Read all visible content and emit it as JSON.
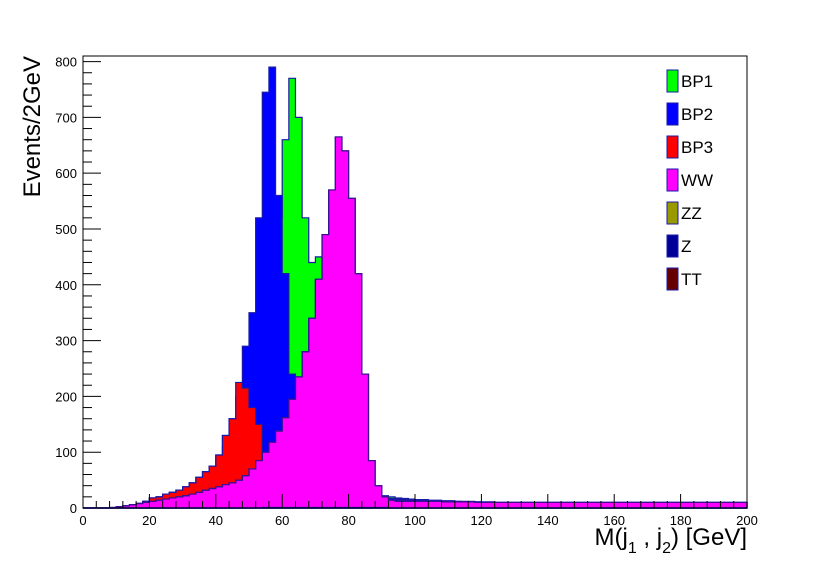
{
  "chart_data": {
    "type": "area",
    "title": "",
    "xlabel": "M(j_1 , j_2) [GeV]",
    "ylabel": "Events/2GeV",
    "xlim": [
      0,
      200
    ],
    "ylim": [
      0,
      810
    ],
    "bin_width": 2,
    "x_ticks": [
      0,
      20,
      40,
      60,
      80,
      100,
      120,
      140,
      160,
      180,
      200
    ],
    "y_ticks": [
      0,
      100,
      200,
      300,
      400,
      500,
      600,
      700,
      800
    ],
    "legend_position": "top-right",
    "legend": [
      {
        "name": "BP1",
        "color": "#00ff00"
      },
      {
        "name": "BP2",
        "color": "#0000ff"
      },
      {
        "name": "BP3",
        "color": "#ff0000"
      },
      {
        "name": "WW",
        "color": "#ff00ff"
      },
      {
        "name": "ZZ",
        "color": "#999900"
      },
      {
        "name": "Z",
        "color": "#000099"
      },
      {
        "name": "TT",
        "color": "#660000"
      }
    ],
    "series": [
      {
        "name": "BP1",
        "color": "#00ff00",
        "values": [
          0,
          0,
          0,
          0,
          0,
          2,
          3,
          5,
          8,
          12,
          18,
          20,
          25,
          28,
          32,
          38,
          45,
          55,
          65,
          75,
          90,
          110,
          130,
          160,
          200,
          240,
          280,
          340,
          400,
          520,
          660,
          770,
          700,
          520,
          440,
          450,
          420,
          350,
          270,
          170,
          100,
          60,
          40,
          30,
          25,
          22,
          20,
          18,
          17,
          16,
          15,
          15,
          14,
          14,
          13,
          13,
          12,
          12,
          12,
          11,
          11,
          11,
          10,
          10,
          10,
          10,
          10,
          10,
          10,
          10,
          10,
          10,
          10,
          10,
          10,
          10,
          10,
          10,
          10,
          10,
          10,
          10,
          10,
          10,
          10,
          10,
          10,
          10,
          10,
          10,
          10,
          10,
          10,
          10,
          10,
          10,
          10,
          10,
          10,
          10
        ]
      },
      {
        "name": "BP2",
        "color": "#0000ff",
        "values": [
          0,
          0,
          0,
          0,
          0,
          2,
          3,
          5,
          8,
          12,
          18,
          20,
          25,
          28,
          32,
          38,
          45,
          55,
          65,
          75,
          95,
          130,
          160,
          200,
          290,
          350,
          520,
          745,
          790,
          560,
          420,
          240,
          180,
          120,
          90,
          85,
          80,
          75,
          70,
          60,
          45,
          30,
          25,
          22,
          20,
          18,
          17,
          16,
          15,
          15,
          14,
          14,
          13,
          13,
          12,
          12,
          12,
          11,
          11,
          11,
          10,
          10,
          10,
          10,
          10,
          10,
          10,
          10,
          10,
          10,
          10,
          10,
          10,
          10,
          10,
          10,
          10,
          10,
          10,
          10,
          10,
          10,
          10,
          10,
          10,
          10,
          10,
          10,
          10,
          10,
          10,
          10,
          10,
          10,
          10,
          10,
          10,
          10,
          10,
          10
        ]
      },
      {
        "name": "BP3",
        "color": "#ff0000",
        "values": [
          0,
          0,
          0,
          0,
          0,
          2,
          3,
          5,
          8,
          12,
          18,
          20,
          25,
          28,
          32,
          38,
          45,
          55,
          65,
          75,
          95,
          130,
          160,
          225,
          215,
          180,
          150,
          90,
          70,
          65,
          62,
          60,
          58,
          55,
          50,
          45,
          40,
          35,
          30,
          25,
          22,
          20,
          18,
          17,
          16,
          15,
          15,
          14,
          14,
          13,
          13,
          12,
          12,
          12,
          11,
          11,
          11,
          10,
          10,
          10,
          10,
          10,
          10,
          10,
          10,
          10,
          10,
          10,
          10,
          10,
          10,
          10,
          10,
          10,
          10,
          10,
          10,
          10,
          10,
          10,
          10,
          10,
          10,
          10,
          10,
          10,
          10,
          10,
          10,
          10,
          10,
          10,
          10,
          10,
          10,
          10,
          10,
          10,
          10,
          10
        ]
      },
      {
        "name": "WW",
        "color": "#ff00ff",
        "values": [
          0,
          0,
          0,
          0,
          1,
          2,
          4,
          6,
          8,
          10,
          12,
          14,
          16,
          18,
          20,
          22,
          25,
          28,
          32,
          35,
          38,
          42,
          45,
          50,
          58,
          70,
          85,
          100,
          118,
          138,
          162,
          195,
          235,
          280,
          340,
          410,
          490,
          570,
          665,
          640,
          555,
          420,
          240,
          85,
          40,
          20,
          14,
          12,
          12,
          12,
          12,
          12,
          12,
          12,
          11,
          11,
          11,
          11,
          11,
          10,
          10,
          10,
          10,
          10,
          10,
          10,
          10,
          10,
          10,
          10,
          10,
          10,
          10,
          10,
          10,
          10,
          10,
          10,
          10,
          10,
          10,
          10,
          10,
          10,
          10,
          10,
          10,
          10,
          10,
          10,
          10,
          10,
          10,
          10,
          10,
          10,
          10,
          10,
          10,
          10
        ]
      },
      {
        "name": "ZZ",
        "color": "#999900",
        "values": [
          0,
          0,
          0,
          0,
          0,
          0,
          0,
          0,
          0,
          0,
          0,
          0,
          0,
          0,
          0,
          0,
          0,
          0,
          0,
          0,
          0,
          0,
          0,
          0,
          0,
          0,
          0,
          1,
          1,
          1,
          1,
          1,
          1,
          1,
          1,
          1,
          1,
          1,
          1,
          1,
          1,
          1,
          1,
          1,
          1,
          1,
          0,
          0,
          0,
          0,
          0,
          0,
          0,
          0,
          0,
          0,
          0,
          0,
          0,
          0,
          0,
          0,
          0,
          0,
          0,
          0,
          0,
          0,
          0,
          0,
          0,
          0,
          0,
          0,
          0,
          0,
          0,
          0,
          0,
          0,
          0,
          0,
          0,
          0,
          0,
          0,
          0,
          0,
          0,
          0,
          0,
          0,
          0,
          0,
          0,
          0,
          0,
          0,
          0,
          0
        ]
      },
      {
        "name": "Z",
        "color": "#000099",
        "values": [
          0,
          0,
          0,
          0,
          0,
          0,
          0,
          0,
          0,
          0,
          0,
          0,
          0,
          0,
          0,
          0,
          0,
          0,
          0,
          0,
          0,
          0,
          0,
          0,
          0,
          0,
          0,
          0,
          0,
          0,
          0,
          0,
          0,
          0,
          0,
          0,
          0,
          0,
          0,
          0,
          0,
          0,
          0,
          0,
          0,
          0,
          0,
          0,
          0,
          0,
          0,
          0,
          0,
          0,
          0,
          0,
          0,
          0,
          0,
          0,
          0,
          0,
          0,
          0,
          0,
          0,
          0,
          0,
          0,
          0,
          0,
          0,
          0,
          0,
          0,
          0,
          0,
          0,
          0,
          0,
          0,
          0,
          0,
          0,
          0,
          0,
          0,
          0,
          0,
          0,
          0,
          0,
          0,
          0,
          0,
          0,
          0,
          0,
          0,
          0
        ]
      },
      {
        "name": "TT",
        "color": "#660000",
        "values": [
          0,
          0,
          0,
          0,
          0,
          0,
          0,
          0,
          0,
          0,
          0,
          0,
          0,
          0,
          0,
          0,
          0,
          0,
          0,
          0,
          0,
          0,
          0,
          0,
          0,
          0,
          0,
          0,
          0,
          0,
          0,
          0,
          0,
          0,
          0,
          0,
          0,
          0,
          0,
          0,
          0,
          0,
          0,
          0,
          0,
          0,
          0,
          0,
          0,
          0,
          0,
          0,
          0,
          0,
          0,
          0,
          0,
          0,
          0,
          0,
          0,
          0,
          0,
          0,
          0,
          0,
          0,
          0,
          0,
          0,
          0,
          0,
          0,
          0,
          0,
          0,
          0,
          0,
          0,
          0,
          0,
          0,
          0,
          0,
          0,
          0,
          0,
          0,
          0,
          0,
          0,
          0,
          0,
          0,
          0,
          0,
          0,
          0,
          0,
          0
        ]
      }
    ],
    "draw_order": [
      "BP1",
      "BP2",
      "BP3",
      "WW",
      "ZZ",
      "Z",
      "TT"
    ]
  }
}
